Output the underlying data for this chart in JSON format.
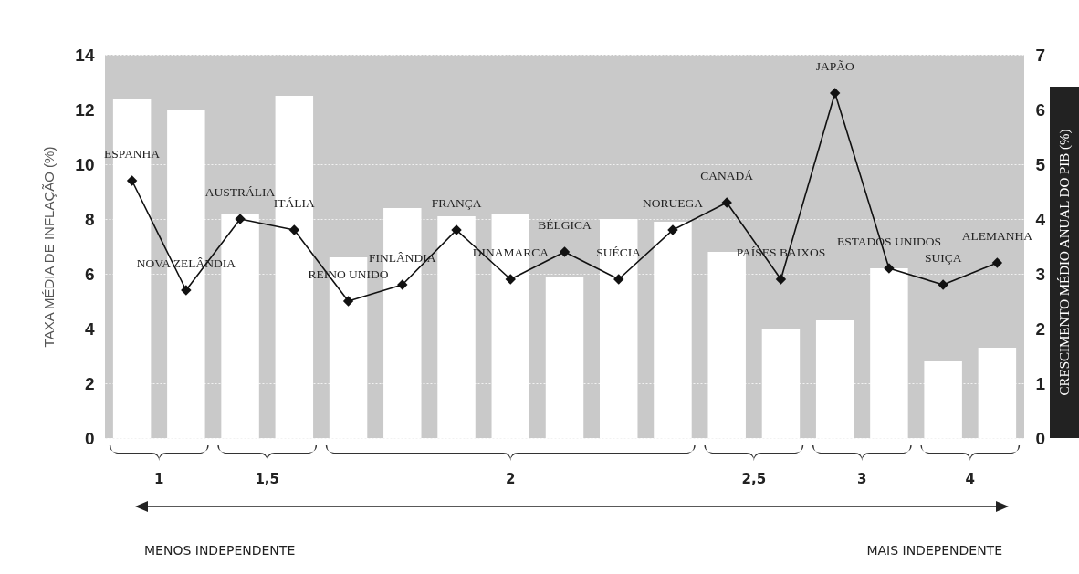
{
  "chart_data": {
    "type": "bar",
    "categories": [
      "ESPANHA",
      "NOVA ZELÂNDIA",
      "AUSTRÁLIA",
      "ITÁLIA",
      "REINO UNIDO",
      "FINLÂNDIA",
      "FRANÇA",
      "DINAMARCA",
      "BÉLGICA",
      "SUÉCIA",
      "NORUEGA",
      "CANADÁ",
      "PAÍSES BAIXOS",
      "JAPÃO",
      "ESTADOS UNIDOS",
      "SUIÇA",
      "ALEMANHA"
    ],
    "ylabel": "TAXA MÉDIA DE INFLAÇÃO (%)",
    "y2label": "CRESCIMENTO MÉDIO ANUAL DO PIB (%)",
    "series": [
      {
        "color": "#ffffff",
        "values": [
          12.4,
          12.0,
          8.2,
          12.5,
          6.6,
          8.4,
          8.1,
          8.2,
          5.9,
          8.0,
          7.9,
          6.8,
          4.0,
          4.3,
          6.2,
          2.8,
          3.3
        ]
      },
      {
        "type": "line",
        "axis": "y2",
        "color": "#111111",
        "values": [
          4.7,
          2.7,
          4.0,
          3.8,
          2.5,
          2.8,
          3.8,
          2.9,
          3.4,
          2.9,
          3.8,
          4.3,
          2.9,
          6.3,
          3.1,
          2.8,
          3.2
        ]
      }
    ],
    "ylim": [
      0,
      14
    ],
    "yticks": [
      0,
      2,
      4,
      6,
      8,
      10,
      12,
      14
    ],
    "y2lim": [
      0,
      7
    ],
    "y2ticks": [
      0,
      1,
      2,
      3,
      4,
      5,
      6,
      7
    ],
    "grid": "y",
    "tick_labels": "y",
    "marker": "diamond",
    "line_style": "solid",
    "annotations": [
      "1",
      "1,5",
      "2",
      "2,5",
      "3",
      "4",
      "MENOS INDEPENDENTE",
      "MAIS INDEPENDENTE"
    ]
  }
}
